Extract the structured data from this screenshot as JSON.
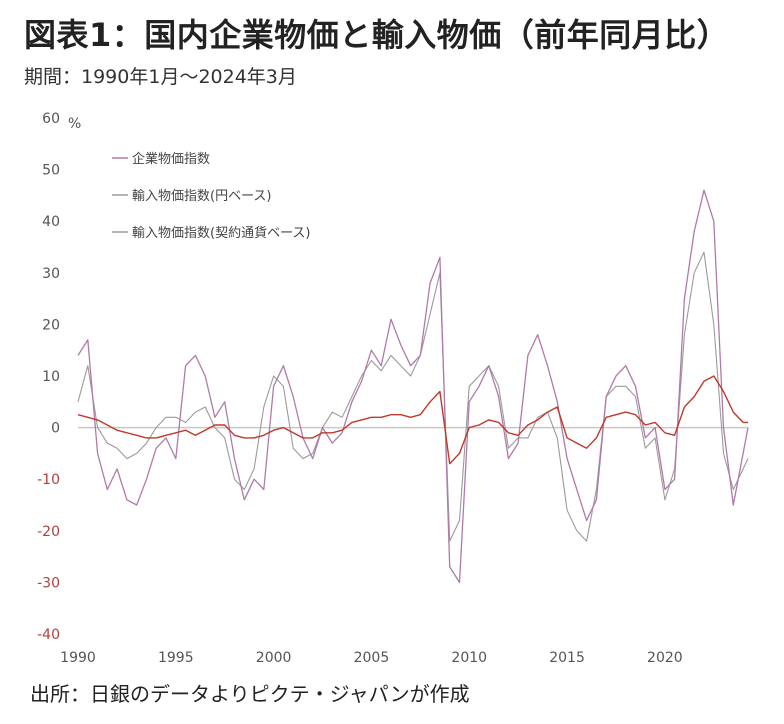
{
  "title": "図表1：国内企業物価と輸入物価（前年同月比）",
  "subtitle": "期間：1990年1月～2024年3月",
  "source": "出所：日銀のデータよりピクテ・ジャパンが作成",
  "colors": {
    "domestic": "#c0392b",
    "import_yen": "#b07aa8",
    "import_contract": "#9a9a9a",
    "zero_line": "#c8c8c8"
  },
  "chart_data": {
    "type": "line",
    "title": "",
    "xlabel": "",
    "ylabel": "",
    "y_unit": "%",
    "ylim": [
      -40,
      60
    ],
    "yticks": [
      60,
      50,
      40,
      30,
      20,
      10,
      0,
      -10,
      -20,
      -30,
      -40
    ],
    "xlim": [
      1990,
      2024.25
    ],
    "xticks": [
      1990,
      1995,
      2000,
      2005,
      2010,
      2015,
      2020
    ],
    "legend_position": "top-left",
    "series": [
      {
        "name": "企業物価指数",
        "x": [
          1990,
          1990.5,
          1991,
          1991.5,
          1992,
          1992.5,
          1993,
          1993.5,
          1994,
          1994.5,
          1995,
          1995.5,
          1996,
          1996.5,
          1997,
          1997.5,
          1998,
          1998.5,
          1999,
          1999.5,
          2000,
          2000.5,
          2001,
          2001.5,
          2002,
          2002.5,
          2003,
          2003.5,
          2004,
          2004.5,
          2005,
          2005.5,
          2006,
          2006.5,
          2007,
          2007.5,
          2008,
          2008.5,
          2009,
          2009.5,
          2010,
          2010.5,
          2011,
          2011.5,
          2012,
          2012.5,
          2013,
          2013.5,
          2014,
          2014.5,
          2015,
          2015.5,
          2016,
          2016.5,
          2017,
          2017.5,
          2018,
          2018.5,
          2019,
          2019.5,
          2020,
          2020.5,
          2021,
          2021.5,
          2022,
          2022.5,
          2023,
          2023.5,
          2024,
          2024.25
        ],
        "values": [
          2.5,
          2,
          1.5,
          0.5,
          -0.5,
          -1,
          -1.5,
          -2,
          -2,
          -1.5,
          -1,
          -0.5,
          -1.5,
          -0.5,
          0.5,
          0.5,
          -1.5,
          -2,
          -2,
          -1.5,
          -0.5,
          0,
          -1,
          -2,
          -2,
          -1,
          -1,
          -0.5,
          1,
          1.5,
          2,
          2,
          2.5,
          2.5,
          2,
          2.5,
          5,
          7,
          -7,
          -5,
          0,
          0.5,
          1.5,
          1,
          -1,
          -1.5,
          0.5,
          1.5,
          3,
          4,
          -2,
          -3,
          -4,
          -2,
          2,
          2.5,
          3,
          2.5,
          0.5,
          1,
          -1,
          -1.5,
          4,
          6,
          9,
          10,
          7,
          3,
          1,
          1
        ]
      },
      {
        "name": "輸入物価指数(円ベース)",
        "x": [
          1990,
          1990.5,
          1991,
          1991.5,
          1992,
          1992.5,
          1993,
          1993.5,
          1994,
          1994.5,
          1995,
          1995.5,
          1996,
          1996.5,
          1997,
          1997.5,
          1998,
          1998.5,
          1999,
          1999.5,
          2000,
          2000.5,
          2001,
          2001.5,
          2002,
          2002.5,
          2003,
          2003.5,
          2004,
          2004.5,
          2005,
          2005.5,
          2006,
          2006.5,
          2007,
          2007.5,
          2008,
          2008.5,
          2009,
          2009.5,
          2010,
          2010.5,
          2011,
          2011.5,
          2012,
          2012.5,
          2013,
          2013.5,
          2014,
          2014.5,
          2015,
          2015.5,
          2016,
          2016.5,
          2017,
          2017.5,
          2018,
          2018.5,
          2019,
          2019.5,
          2020,
          2020.5,
          2021,
          2021.5,
          2022,
          2022.5,
          2023,
          2023.5,
          2024,
          2024.25
        ],
        "values": [
          14,
          17,
          -5,
          -12,
          -8,
          -14,
          -15,
          -10,
          -4,
          -2,
          -6,
          12,
          14,
          10,
          2,
          5,
          -6,
          -14,
          -10,
          -12,
          8,
          12,
          6,
          -2,
          -6,
          0,
          -3,
          -1,
          5,
          9,
          15,
          12,
          21,
          16,
          12,
          14,
          28,
          33,
          -27,
          -30,
          5,
          8,
          12,
          6,
          -6,
          -3,
          14,
          18,
          12,
          5,
          -6,
          -12,
          -18,
          -14,
          6,
          10,
          12,
          8,
          -2,
          0,
          -12,
          -10,
          25,
          38,
          46,
          40,
          0,
          -15,
          -5,
          0
        ]
      },
      {
        "name": "輸入物価指数(契約通貨ベース)",
        "x": [
          1990,
          1990.5,
          1991,
          1991.5,
          1992,
          1992.5,
          1993,
          1993.5,
          1994,
          1994.5,
          1995,
          1995.5,
          1996,
          1996.5,
          1997,
          1997.5,
          1998,
          1998.5,
          1999,
          1999.5,
          2000,
          2000.5,
          2001,
          2001.5,
          2002,
          2002.5,
          2003,
          2003.5,
          2004,
          2004.5,
          2005,
          2005.5,
          2006,
          2006.5,
          2007,
          2007.5,
          2008,
          2008.5,
          2009,
          2009.5,
          2010,
          2010.5,
          2011,
          2011.5,
          2012,
          2012.5,
          2013,
          2013.5,
          2014,
          2014.5,
          2015,
          2015.5,
          2016,
          2016.5,
          2017,
          2017.5,
          2018,
          2018.5,
          2019,
          2019.5,
          2020,
          2020.5,
          2021,
          2021.5,
          2022,
          2022.5,
          2023,
          2023.5,
          2024,
          2024.25
        ],
        "values": [
          5,
          12,
          0,
          -3,
          -4,
          -6,
          -5,
          -3,
          0,
          2,
          2,
          1,
          3,
          4,
          0,
          -2,
          -10,
          -12,
          -8,
          4,
          10,
          8,
          -4,
          -6,
          -5,
          0,
          3,
          2,
          6,
          10,
          13,
          11,
          14,
          12,
          10,
          14,
          22,
          30,
          -22,
          -18,
          8,
          10,
          12,
          8,
          -4,
          -2,
          -2,
          2,
          3,
          -2,
          -16,
          -20,
          -22,
          -12,
          6,
          8,
          8,
          6,
          -4,
          -2,
          -14,
          -8,
          18,
          30,
          34,
          20,
          -5,
          -12,
          -8,
          -6
        ]
      }
    ]
  }
}
